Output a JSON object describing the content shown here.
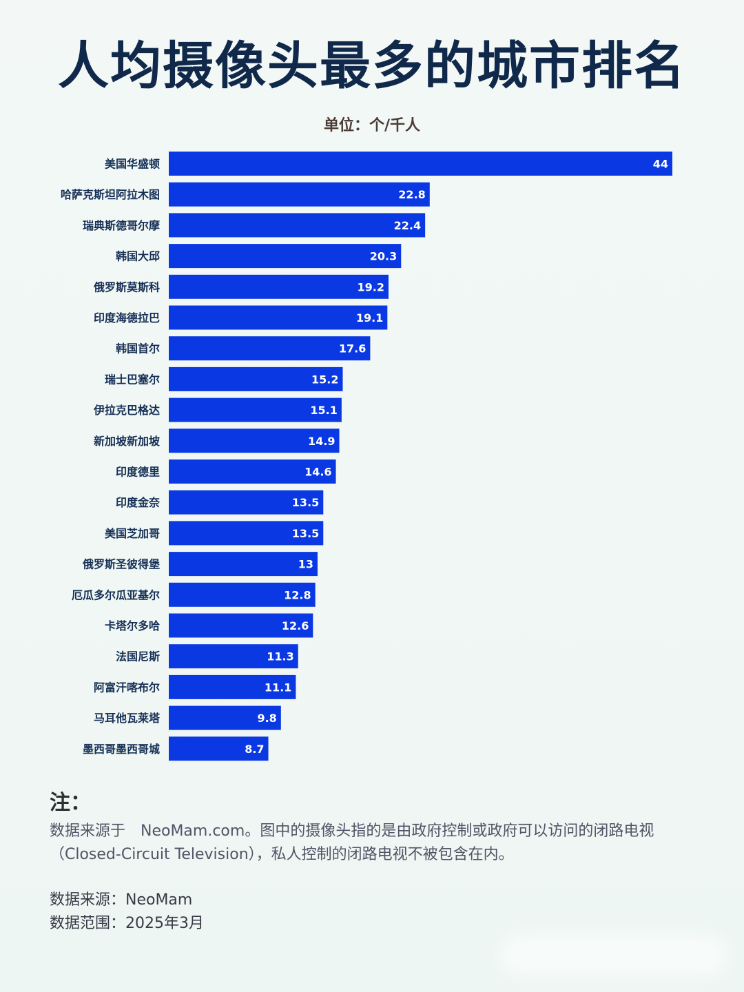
{
  "header": {
    "title": "人均摄像头最多的城市排名",
    "subtitle": "单位：个/千人"
  },
  "notes": {
    "heading": "注：",
    "body": "数据来源于　NeoMam.com。图中的摄像头指的是由政府控制或政府可以访问的闭路电视（Closed-Circuit Television），私人控制的闭路电视不被包含在内。",
    "source": "数据来源：NeoMam",
    "range": "数据范围：2025年3月"
  },
  "chart_data": {
    "type": "bar",
    "orientation": "horizontal",
    "title": "人均摄像头最多的城市排名",
    "subtitle": "单位：个/千人",
    "categories": [
      "美国华盛顿",
      "哈萨克斯坦阿拉木图",
      "瑞典斯德哥尔摩",
      "韩国大邱",
      "俄罗斯莫斯科",
      "印度海德拉巴",
      "韩国首尔",
      "瑞士巴塞尔",
      "伊拉克巴格达",
      "新加坡新加坡",
      "印度德里",
      "印度金奈",
      "美国芝加哥",
      "俄罗斯圣彼得堡",
      "厄瓜多尔瓜亚基尔",
      "卡塔尔多哈",
      "法国尼斯",
      "阿富汗喀布尔",
      "马耳他瓦莱塔",
      "墨西哥墨西哥城"
    ],
    "values": [
      44,
      22.8,
      22.4,
      20.3,
      19.2,
      19.1,
      17.6,
      15.2,
      15.1,
      14.9,
      14.6,
      13.5,
      13.5,
      13,
      12.8,
      12.6,
      11.3,
      11.1,
      9.8,
      8.7
    ],
    "xlim": [
      0,
      44
    ],
    "grid": false,
    "legend": "none",
    "colors": {
      "bar": "#0a39e3",
      "bar_label": "#ffffff",
      "category_label": "#152f55"
    }
  }
}
